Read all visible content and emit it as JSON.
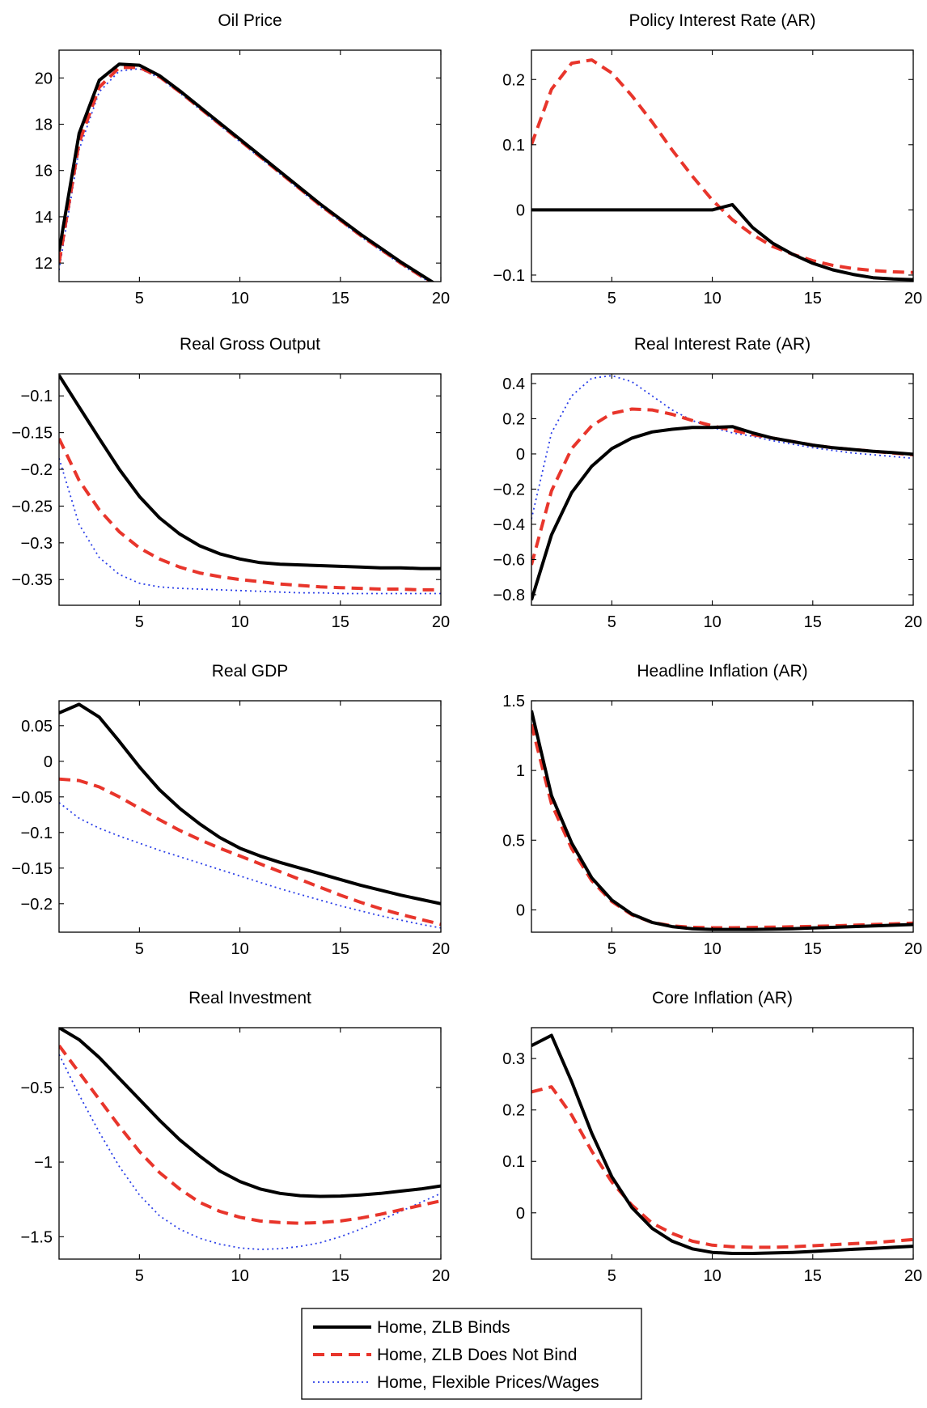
{
  "chart_data": [
    {
      "type": "line",
      "title": "Oil Price",
      "xlim": [
        1,
        20
      ],
      "ylim": [
        11.2,
        21.2
      ],
      "xticks": [
        5,
        10,
        15,
        20
      ],
      "yticks": [
        12,
        14,
        16,
        18,
        20
      ],
      "ytick_labels": [
        "12",
        "14",
        "16",
        "18",
        "20"
      ],
      "x": [
        1,
        2,
        3,
        4,
        5,
        6,
        7,
        8,
        9,
        10,
        11,
        12,
        13,
        14,
        15,
        16,
        17,
        18,
        19,
        20
      ],
      "series": [
        {
          "name": "Home, ZLB Binds",
          "values": [
            12.5,
            17.6,
            19.9,
            20.6,
            20.55,
            20.1,
            19.45,
            18.75,
            18.05,
            17.35,
            16.65,
            15.95,
            15.25,
            14.55,
            13.9,
            13.25,
            12.65,
            12.05,
            11.5,
            10.95
          ]
        },
        {
          "name": "Home, ZLB Does Not Bind",
          "values": [
            12.0,
            17.2,
            19.6,
            20.45,
            20.45,
            20.05,
            19.4,
            18.7,
            18.0,
            17.3,
            16.6,
            15.9,
            15.2,
            14.5,
            13.85,
            13.2,
            12.6,
            12.0,
            11.45,
            10.95
          ]
        },
        {
          "name": "Home, Flexible Prices/Wages",
          "values": [
            11.7,
            16.9,
            19.4,
            20.3,
            20.4,
            20.0,
            19.35,
            18.65,
            17.95,
            17.25,
            16.55,
            15.85,
            15.15,
            14.45,
            13.8,
            13.15,
            12.55,
            11.95,
            11.4,
            10.9
          ]
        }
      ]
    },
    {
      "type": "line",
      "title": "Policy Interest Rate (AR)",
      "xlim": [
        1,
        20
      ],
      "ylim": [
        -0.11,
        0.245
      ],
      "xticks": [
        5,
        10,
        15,
        20
      ],
      "yticks": [
        -0.1,
        0,
        0.1,
        0.2
      ],
      "ytick_labels": [
        "−0.1",
        "0",
        "0.1",
        "0.2"
      ],
      "x": [
        1,
        2,
        3,
        4,
        5,
        6,
        7,
        8,
        9,
        10,
        11,
        12,
        13,
        14,
        15,
        16,
        17,
        18,
        19,
        20
      ],
      "series": [
        {
          "name": "Home, ZLB Binds",
          "values": [
            0,
            0,
            0,
            0,
            0,
            0,
            0,
            0,
            0,
            0,
            0.008,
            -0.027,
            -0.051,
            -0.068,
            -0.082,
            -0.092,
            -0.099,
            -0.104,
            -0.106,
            -0.107
          ]
        },
        {
          "name": "Home, ZLB Does Not Bind",
          "values": [
            0.1,
            0.185,
            0.225,
            0.23,
            0.21,
            0.175,
            0.135,
            0.092,
            0.052,
            0.015,
            -0.015,
            -0.038,
            -0.056,
            -0.068,
            -0.078,
            -0.085,
            -0.09,
            -0.093,
            -0.095,
            -0.096
          ]
        }
      ]
    },
    {
      "type": "line",
      "title": "Real Gross Output",
      "xlim": [
        1,
        20
      ],
      "ylim": [
        -0.385,
        -0.07
      ],
      "xticks": [
        5,
        10,
        15,
        20
      ],
      "yticks": [
        -0.35,
        -0.3,
        -0.25,
        -0.2,
        -0.15,
        -0.1
      ],
      "ytick_labels": [
        "−0.35",
        "−0.3",
        "−0.25",
        "−0.2",
        "−0.15",
        "−0.1"
      ],
      "x": [
        1,
        2,
        3,
        4,
        5,
        6,
        7,
        8,
        9,
        10,
        11,
        12,
        13,
        14,
        15,
        16,
        17,
        18,
        19,
        20
      ],
      "series": [
        {
          "name": "Home, ZLB Binds",
          "values": [
            -0.072,
            -0.115,
            -0.158,
            -0.2,
            -0.237,
            -0.266,
            -0.288,
            -0.304,
            -0.315,
            -0.322,
            -0.327,
            -0.329,
            -0.33,
            -0.331,
            -0.332,
            -0.333,
            -0.334,
            -0.334,
            -0.335,
            -0.335
          ]
        },
        {
          "name": "Home, ZLB Does Not Bind",
          "values": [
            -0.158,
            -0.215,
            -0.255,
            -0.285,
            -0.307,
            -0.322,
            -0.333,
            -0.341,
            -0.346,
            -0.35,
            -0.353,
            -0.356,
            -0.358,
            -0.36,
            -0.361,
            -0.362,
            -0.363,
            -0.363,
            -0.364,
            -0.364
          ]
        },
        {
          "name": "Home, Flexible Prices/Wages",
          "values": [
            -0.185,
            -0.275,
            -0.32,
            -0.343,
            -0.355,
            -0.36,
            -0.362,
            -0.363,
            -0.364,
            -0.365,
            -0.366,
            -0.367,
            -0.368,
            -0.368,
            -0.369,
            -0.369,
            -0.369,
            -0.369,
            -0.369,
            -0.369
          ]
        }
      ]
    },
    {
      "type": "line",
      "title": "Real Interest Rate (AR)",
      "xlim": [
        1,
        20
      ],
      "ylim": [
        -0.86,
        0.455
      ],
      "xticks": [
        5,
        10,
        15,
        20
      ],
      "yticks": [
        -0.8,
        -0.6,
        -0.4,
        -0.2,
        0,
        0.2,
        0.4
      ],
      "ytick_labels": [
        "−0.8",
        "−0.6",
        "−0.4",
        "−0.2",
        "0",
        "0.2",
        "0.4"
      ],
      "x": [
        1,
        2,
        3,
        4,
        5,
        6,
        7,
        8,
        9,
        10,
        11,
        12,
        13,
        14,
        15,
        16,
        17,
        18,
        19,
        20
      ],
      "series": [
        {
          "name": "Home, ZLB Binds",
          "values": [
            -0.83,
            -0.46,
            -0.22,
            -0.07,
            0.03,
            0.09,
            0.125,
            0.14,
            0.15,
            0.15,
            0.155,
            0.12,
            0.09,
            0.07,
            0.05,
            0.035,
            0.025,
            0.015,
            0.007,
            -0.002
          ]
        },
        {
          "name": "Home, ZLB Does Not Bind",
          "values": [
            -0.63,
            -0.21,
            0.03,
            0.16,
            0.23,
            0.255,
            0.25,
            0.225,
            0.19,
            0.16,
            0.135,
            0.11,
            0.09,
            0.07,
            0.05,
            0.035,
            0.025,
            0.015,
            0.005,
            -0.005
          ]
        },
        {
          "name": "Home, Flexible Prices/Wages",
          "values": [
            -0.37,
            0.12,
            0.33,
            0.43,
            0.445,
            0.41,
            0.33,
            0.25,
            0.19,
            0.15,
            0.12,
            0.1,
            0.075,
            0.055,
            0.035,
            0.02,
            0.005,
            -0.005,
            -0.015,
            -0.025
          ]
        }
      ]
    },
    {
      "type": "line",
      "title": "Real GDP",
      "xlim": [
        1,
        20
      ],
      "ylim": [
        -0.24,
        0.085
      ],
      "xticks": [
        5,
        10,
        15,
        20
      ],
      "yticks": [
        -0.2,
        -0.15,
        -0.1,
        -0.05,
        0,
        0.05
      ],
      "ytick_labels": [
        "−0.2",
        "−0.15",
        "−0.1",
        "−0.05",
        "0",
        "0.05"
      ],
      "x": [
        1,
        2,
        3,
        4,
        5,
        6,
        7,
        8,
        9,
        10,
        11,
        12,
        13,
        14,
        15,
        16,
        17,
        18,
        19,
        20
      ],
      "series": [
        {
          "name": "Home, ZLB Binds",
          "values": [
            0.068,
            0.08,
            0.062,
            0.028,
            -0.008,
            -0.04,
            -0.066,
            -0.088,
            -0.107,
            -0.122,
            -0.133,
            -0.142,
            -0.15,
            -0.158,
            -0.166,
            -0.174,
            -0.181,
            -0.188,
            -0.194,
            -0.2
          ]
        },
        {
          "name": "Home, ZLB Does Not Bind",
          "values": [
            -0.025,
            -0.027,
            -0.036,
            -0.05,
            -0.066,
            -0.082,
            -0.097,
            -0.11,
            -0.122,
            -0.133,
            -0.144,
            -0.155,
            -0.166,
            -0.177,
            -0.188,
            -0.198,
            -0.207,
            -0.215,
            -0.222,
            -0.229
          ]
        },
        {
          "name": "Home, Flexible Prices/Wages",
          "values": [
            -0.058,
            -0.08,
            -0.094,
            -0.105,
            -0.115,
            -0.125,
            -0.134,
            -0.143,
            -0.152,
            -0.161,
            -0.17,
            -0.179,
            -0.187,
            -0.195,
            -0.203,
            -0.21,
            -0.217,
            -0.223,
            -0.229,
            -0.234
          ]
        }
      ]
    },
    {
      "type": "line",
      "title": "Headline Inflation (AR)",
      "xlim": [
        1,
        20
      ],
      "ylim": [
        -0.16,
        1.5
      ],
      "xticks": [
        5,
        10,
        15,
        20
      ],
      "yticks": [
        0,
        0.5,
        1,
        1.5
      ],
      "ytick_labels": [
        "0",
        "0.5",
        "1",
        "1.5"
      ],
      "x": [
        1,
        2,
        3,
        4,
        5,
        6,
        7,
        8,
        9,
        10,
        11,
        12,
        13,
        14,
        15,
        16,
        17,
        18,
        19,
        20
      ],
      "series": [
        {
          "name": "Home, ZLB Binds",
          "values": [
            1.43,
            0.82,
            0.48,
            0.23,
            0.07,
            -0.03,
            -0.09,
            -0.12,
            -0.135,
            -0.14,
            -0.14,
            -0.14,
            -0.138,
            -0.135,
            -0.13,
            -0.125,
            -0.12,
            -0.115,
            -0.11,
            -0.105
          ]
        },
        {
          "name": "Home, ZLB Does Not Bind",
          "values": [
            1.33,
            0.76,
            0.44,
            0.21,
            0.06,
            -0.035,
            -0.09,
            -0.115,
            -0.125,
            -0.128,
            -0.128,
            -0.126,
            -0.124,
            -0.121,
            -0.118,
            -0.115,
            -0.11,
            -0.105,
            -0.1,
            -0.095
          ]
        }
      ]
    },
    {
      "type": "line",
      "title": "Real Investment",
      "xlim": [
        1,
        20
      ],
      "ylim": [
        -1.65,
        -0.1
      ],
      "xticks": [
        5,
        10,
        15,
        20
      ],
      "yticks": [
        -1.5,
        -1,
        -0.5
      ],
      "ytick_labels": [
        "−1.5",
        "−1",
        "−0.5"
      ],
      "x": [
        1,
        2,
        3,
        4,
        5,
        6,
        7,
        8,
        9,
        10,
        11,
        12,
        13,
        14,
        15,
        16,
        17,
        18,
        19,
        20
      ],
      "series": [
        {
          "name": "Home, ZLB Binds",
          "values": [
            -0.1,
            -0.18,
            -0.3,
            -0.44,
            -0.58,
            -0.72,
            -0.85,
            -0.96,
            -1.06,
            -1.13,
            -1.18,
            -1.21,
            -1.225,
            -1.23,
            -1.228,
            -1.22,
            -1.21,
            -1.195,
            -1.18,
            -1.16
          ]
        },
        {
          "name": "Home, ZLB Does Not Bind",
          "values": [
            -0.22,
            -0.4,
            -0.58,
            -0.76,
            -0.93,
            -1.07,
            -1.18,
            -1.27,
            -1.33,
            -1.37,
            -1.395,
            -1.405,
            -1.41,
            -1.405,
            -1.395,
            -1.375,
            -1.35,
            -1.32,
            -1.29,
            -1.26
          ]
        },
        {
          "name": "Home, Flexible Prices/Wages",
          "values": [
            -0.28,
            -0.55,
            -0.8,
            -1.03,
            -1.22,
            -1.36,
            -1.45,
            -1.51,
            -1.55,
            -1.575,
            -1.585,
            -1.58,
            -1.565,
            -1.54,
            -1.5,
            -1.45,
            -1.39,
            -1.33,
            -1.27,
            -1.21
          ]
        }
      ]
    },
    {
      "type": "line",
      "title": "Core Inflation (AR)",
      "xlim": [
        1,
        20
      ],
      "ylim": [
        -0.09,
        0.36
      ],
      "xticks": [
        5,
        10,
        15,
        20
      ],
      "yticks": [
        0,
        0.1,
        0.2,
        0.3
      ],
      "ytick_labels": [
        "0",
        "0.1",
        "0.2",
        "0.3"
      ],
      "x": [
        1,
        2,
        3,
        4,
        5,
        6,
        7,
        8,
        9,
        10,
        11,
        12,
        13,
        14,
        15,
        16,
        17,
        18,
        19,
        20
      ],
      "series": [
        {
          "name": "Home, ZLB Binds",
          "values": [
            0.325,
            0.345,
            0.255,
            0.155,
            0.07,
            0.01,
            -0.03,
            -0.055,
            -0.07,
            -0.077,
            -0.079,
            -0.079,
            -0.078,
            -0.077,
            -0.075,
            -0.073,
            -0.071,
            -0.069,
            -0.067,
            -0.065
          ]
        },
        {
          "name": "Home, ZLB Does Not Bind",
          "values": [
            0.235,
            0.245,
            0.19,
            0.12,
            0.06,
            0.015,
            -0.02,
            -0.04,
            -0.055,
            -0.063,
            -0.066,
            -0.067,
            -0.067,
            -0.066,
            -0.064,
            -0.062,
            -0.06,
            -0.058,
            -0.055,
            -0.052
          ]
        }
      ]
    }
  ],
  "legend": {
    "items": [
      {
        "label": "Home, ZLB Binds",
        "color": "#000000",
        "style": "solid"
      },
      {
        "label": "Home, ZLB Does Not Bind",
        "color": "#e8352b",
        "style": "dashed"
      },
      {
        "label": "Home, Flexible Prices/Wages",
        "color": "#2b3fe8",
        "style": "dotted"
      }
    ]
  }
}
